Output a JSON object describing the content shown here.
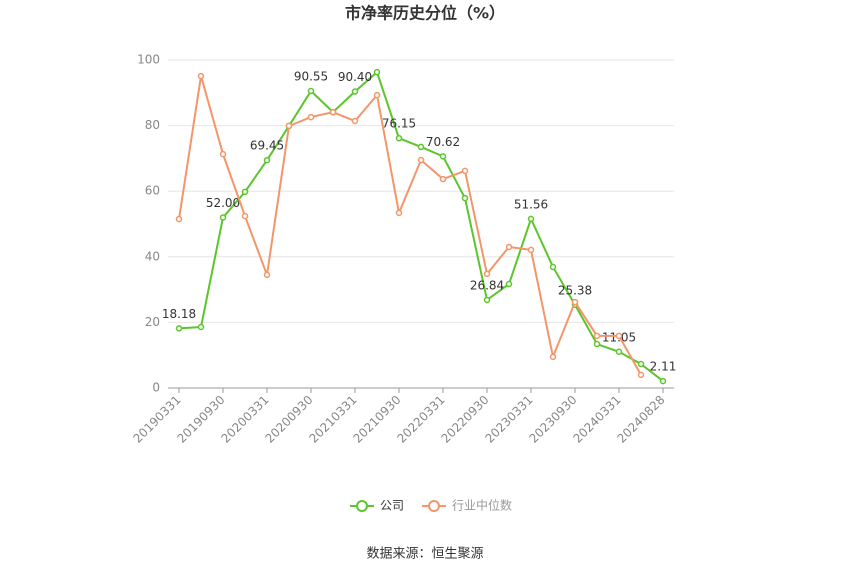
{
  "chart_data": {
    "type": "line",
    "title": "市净率历史分位（%）",
    "categories": [
      "20190331",
      null,
      "20190930",
      null,
      "20200331",
      null,
      "20200930",
      null,
      "20210331",
      null,
      "20210930",
      null,
      "20220331",
      null,
      "20220930",
      null,
      "20230331",
      null,
      "20230930",
      null,
      "20240331",
      null,
      "20240828"
    ],
    "series": [
      {
        "name": "公司",
        "color": "#5cc52b",
        "values": [
          18.18,
          18.6,
          52.0,
          59.8,
          69.45,
          79.9,
          90.55,
          84.1,
          90.4,
          96.3,
          76.15,
          73.5,
          70.62,
          57.9,
          26.84,
          31.7,
          51.56,
          36.9,
          25.38,
          13.4,
          11.05,
          7.3,
          2.11
        ],
        "value_labels": [
          "18.18",
          null,
          "52.00",
          null,
          "69.45",
          null,
          "90.55",
          null,
          "90.40",
          null,
          "76.15",
          null,
          "70.62",
          null,
          "26.84",
          null,
          "51.56",
          null,
          "25.38",
          null,
          "11.05",
          null,
          "2.11"
        ]
      },
      {
        "name": "行业中位数",
        "color": "#f4956a",
        "values": [
          51.5,
          95.1,
          71.3,
          52.4,
          34.5,
          79.9,
          82.6,
          84.1,
          81.4,
          89.3,
          53.4,
          69.5,
          63.7,
          66.2,
          34.8,
          43.0,
          42.1,
          9.5,
          26.2,
          15.9,
          15.9,
          4.0,
          null
        ]
      }
    ],
    "ylim": [
      0,
      100
    ],
    "yticks": [
      0,
      20,
      40,
      60,
      80,
      100
    ],
    "grid": true,
    "legend": "bottom",
    "source": "数据来源：恒生聚源"
  }
}
